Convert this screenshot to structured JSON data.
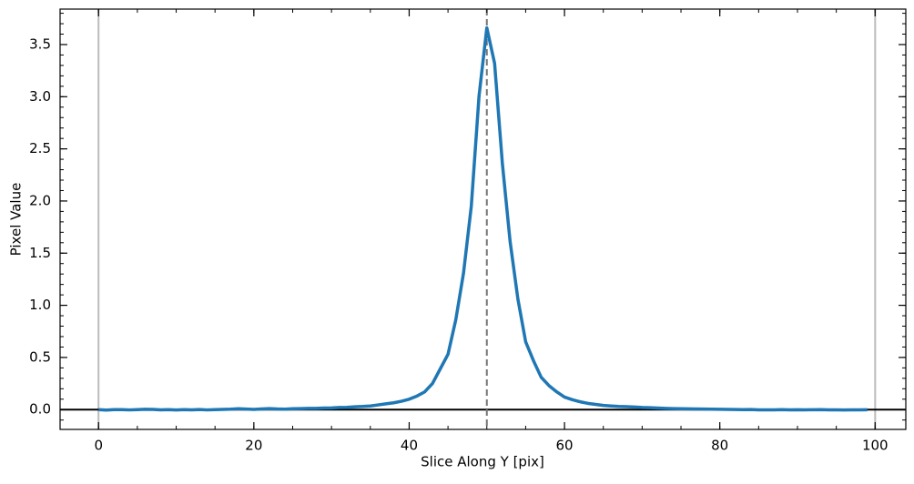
{
  "chart_data": {
    "type": "line",
    "x_label": "Slice Along Y [pix]",
    "y_label": "Pixel Value",
    "x": [
      0,
      1,
      2,
      3,
      4,
      5,
      6,
      7,
      8,
      9,
      10,
      11,
      12,
      13,
      14,
      15,
      16,
      17,
      18,
      19,
      20,
      21,
      22,
      23,
      24,
      25,
      26,
      27,
      28,
      29,
      30,
      31,
      32,
      33,
      34,
      35,
      36,
      37,
      38,
      39,
      40,
      41,
      42,
      43,
      44,
      45,
      46,
      47,
      48,
      49,
      50,
      51,
      52,
      53,
      54,
      55,
      56,
      57,
      58,
      59,
      60,
      61,
      62,
      63,
      64,
      65,
      66,
      67,
      68,
      69,
      70,
      71,
      72,
      73,
      74,
      75,
      76,
      77,
      78,
      79,
      80,
      81,
      82,
      83,
      84,
      85,
      86,
      87,
      88,
      89,
      90,
      91,
      92,
      93,
      94,
      95,
      96,
      97,
      98,
      99
    ],
    "series": [
      {
        "color": "#1f77b4",
        "values": [
          0,
          -0.005,
          0,
          0,
          -0.003,
          0,
          0.003,
          0.002,
          -0.002,
          0,
          -0.004,
          0,
          -0.002,
          0.001,
          -0.003,
          0,
          0.002,
          0.004,
          0.008,
          0.005,
          0.002,
          0.006,
          0.01,
          0.006,
          0.004,
          0.008,
          0.01,
          0.012,
          0.012,
          0.015,
          0.016,
          0.02,
          0.022,
          0.027,
          0.03,
          0.035,
          0.045,
          0.055,
          0.065,
          0.08,
          0.1,
          0.13,
          0.17,
          0.25,
          0.39,
          0.53,
          0.86,
          1.31,
          1.95,
          3.01,
          3.66,
          3.32,
          2.36,
          1.61,
          1.06,
          0.65,
          0.47,
          0.31,
          0.23,
          0.17,
          0.12,
          0.095,
          0.075,
          0.06,
          0.05,
          0.04,
          0.035,
          0.03,
          0.028,
          0.025,
          0.02,
          0.018,
          0.015,
          0.012,
          0.01,
          0.008,
          0.007,
          0.006,
          0.005,
          0.004,
          0.003,
          0.002,
          0.001,
          0,
          0.001,
          -0.002,
          -0.003,
          -0.002,
          0,
          -0.002,
          -0.001,
          -0.002,
          -0.001,
          0,
          -0.002,
          -0.003,
          -0.004,
          -0.002,
          -0.002,
          -0.001
        ]
      }
    ],
    "xlim": [
      -4.95,
      103.95
    ],
    "ylim": [
      -0.19,
      3.84
    ],
    "xticks": [
      0,
      20,
      40,
      60,
      80,
      100
    ],
    "yticks": [
      {
        "value": 0,
        "label": "0.0"
      },
      0.5,
      {
        "value": 1,
        "label": "1.0"
      },
      1.5,
      {
        "value": 2,
        "label": "2.0"
      },
      2.5,
      {
        "value": 3,
        "label": "3.0"
      },
      3.5
    ],
    "edge_lines": [
      0,
      100
    ],
    "center_line": 50,
    "zero_line": 0,
    "minor_ticks": true
  }
}
